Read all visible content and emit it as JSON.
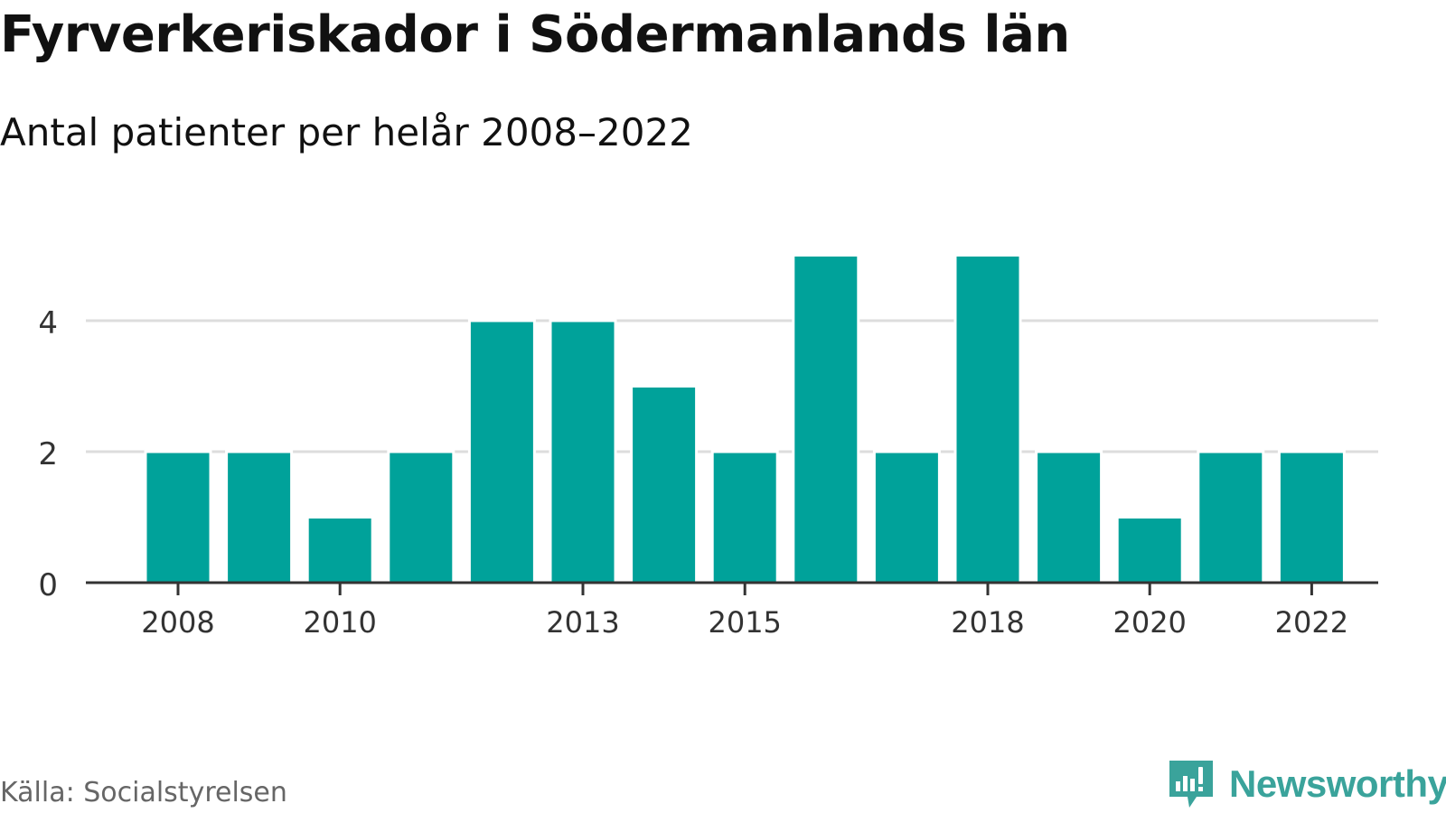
{
  "chart_data": {
    "type": "bar",
    "title": "Fyrverkeriskador i Södermanlands län",
    "subtitle": "Antal patienter per helår 2008–2022",
    "categories": [
      "2008",
      "2009",
      "2010",
      "2011",
      "2012",
      "2013",
      "2014",
      "2015",
      "2016",
      "2017",
      "2018",
      "2019",
      "2020",
      "2021",
      "2022"
    ],
    "values": [
      2,
      2,
      1,
      2,
      4,
      4,
      3,
      2,
      5,
      2,
      5,
      2,
      1,
      2,
      2
    ],
    "x_tick_labels": [
      "2008",
      "2010",
      "2013",
      "2015",
      "2018",
      "2020",
      "2022"
    ],
    "y_ticks": [
      0,
      2,
      4
    ],
    "ylim": [
      0,
      5.5
    ],
    "xlabel": "",
    "ylabel": "",
    "grid": true,
    "bar_color": "#00a29a",
    "gridline_color": "#dddddd",
    "axis_color": "#333333"
  },
  "source": "Källa: Socialstyrelsen",
  "brand": {
    "name": "Newsworthy",
    "icon": "newsworthy-logo-icon",
    "color": "#3aa39b"
  }
}
